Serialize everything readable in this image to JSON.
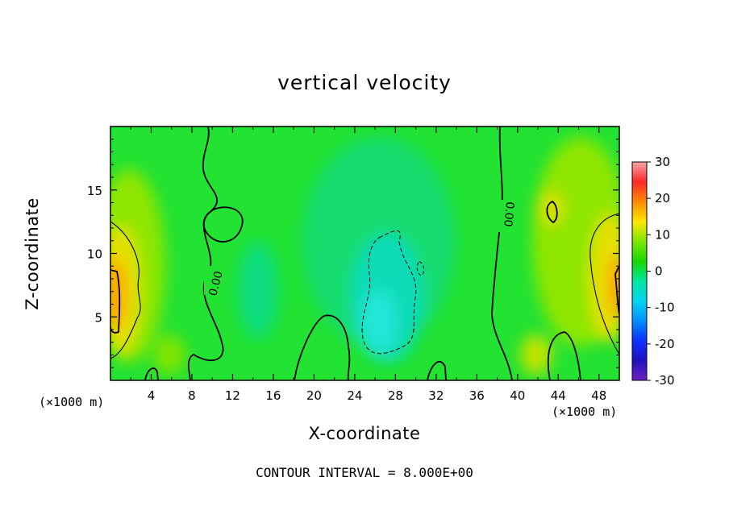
{
  "chart_data": {
    "type": "heatmap",
    "title": "vertical velocity",
    "xlabel": "X-coordinate",
    "ylabel": "Z-coordinate",
    "x_unit_left": "(×1000 m)",
    "x_unit_right": "(×1000 m)",
    "xlim": [
      0,
      50
    ],
    "ylim": [
      0,
      20
    ],
    "x_ticks": [
      4,
      8,
      12,
      16,
      20,
      24,
      28,
      32,
      36,
      40,
      44,
      48
    ],
    "y_ticks": [
      5,
      10,
      15
    ],
    "colorbar": {
      "range": [
        -30,
        30
      ],
      "ticks": [
        30,
        20,
        10,
        0,
        -10,
        -20,
        -30
      ],
      "colors": [
        "#f7a5a5",
        "#ff2a2a",
        "#ff8a00",
        "#ffe600",
        "#7fe600",
        "#18d800",
        "#00e6a0",
        "#00d4f0",
        "#0090ff",
        "#1030ff",
        "#2010c0",
        "#7020c0"
      ]
    },
    "background_value_color": "#20e030",
    "contour_interval_text": "CONTOUR INTERVAL = 8.000E+00",
    "contour_labels": [
      "0.00",
      "0.00"
    ]
  }
}
